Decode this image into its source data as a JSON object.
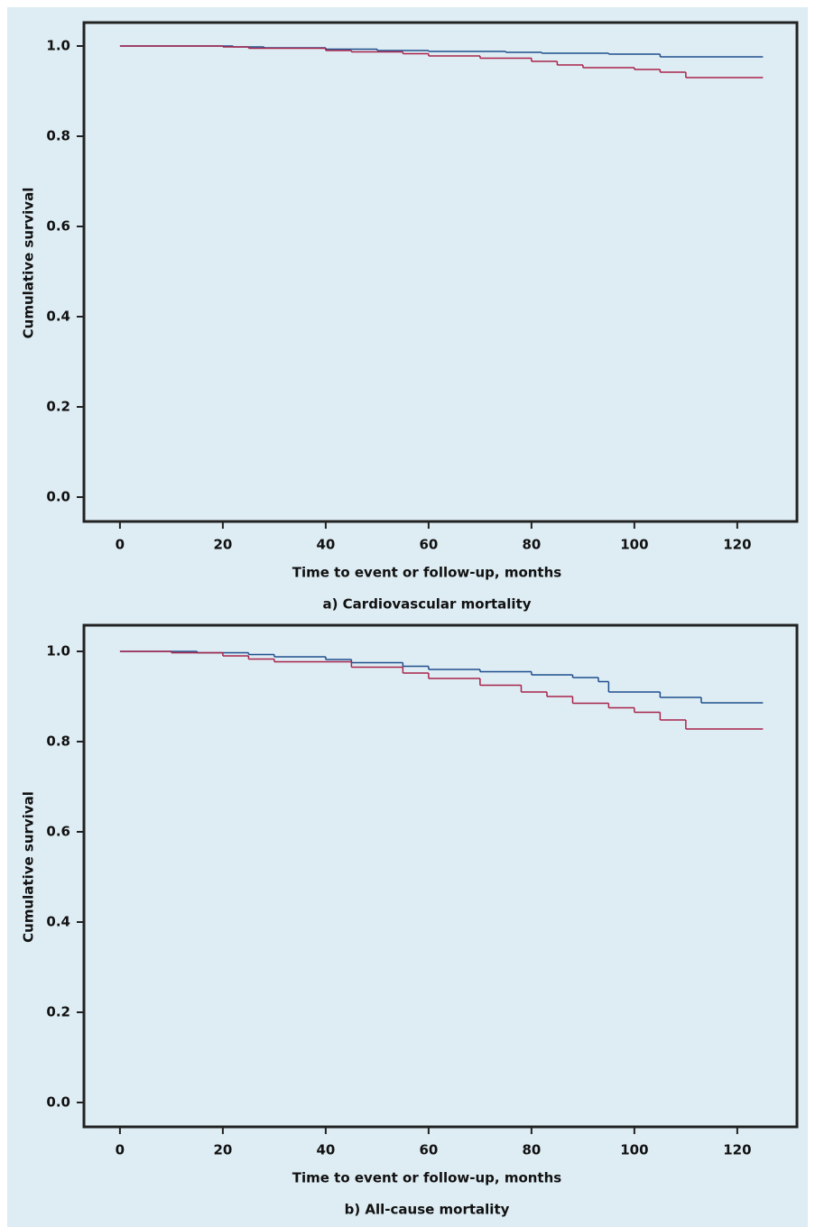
{
  "chart_data": [
    {
      "type": "line",
      "step": true,
      "title": "a) Cardiovascular mortality",
      "x_label": "Time to event or follow-up, months",
      "y_label": "Cumulative survival",
      "xlim": [
        -7,
        131.6
      ],
      "ylim": [
        -0.054,
        1.052
      ],
      "xticks": [
        0,
        20,
        40,
        60,
        80,
        100,
        120
      ],
      "yticks": [
        {
          "value": 0,
          "label": "0.0"
        },
        0.2,
        0.4,
        0.6,
        0.8,
        {
          "value": 1,
          "label": "1.0"
        }
      ],
      "series": [
        {
          "color": "#1f4e8c",
          "x": [
            0,
            22,
            28,
            40,
            50,
            60,
            75,
            82,
            95,
            105,
            125
          ],
          "values": [
            1,
            0.998,
            0.996,
            0.993,
            0.99,
            0.988,
            0.986,
            0.984,
            0.982,
            0.976,
            0.976
          ]
        },
        {
          "color": "#a8234a",
          "x": [
            0,
            20,
            25,
            40,
            45,
            55,
            60,
            70,
            80,
            85,
            90,
            100,
            105,
            110,
            125
          ],
          "values": [
            1,
            0.998,
            0.995,
            0.99,
            0.987,
            0.983,
            0.978,
            0.973,
            0.966,
            0.958,
            0.952,
            0.948,
            0.942,
            0.93,
            0.93
          ]
        }
      ]
    },
    {
      "type": "line",
      "step": true,
      "title": "b) All-cause mortality",
      "x_label": "Time to event or follow-up, months",
      "y_label": "Cumulative survival",
      "xlim": [
        -7,
        131.6
      ],
      "ylim": [
        -0.054,
        1.058
      ],
      "xticks": [
        0,
        20,
        40,
        60,
        80,
        100,
        120
      ],
      "yticks": [
        {
          "value": 0,
          "label": "0.0"
        },
        0.2,
        0.4,
        0.6,
        0.8,
        {
          "value": 1,
          "label": "1.0"
        }
      ],
      "series": [
        {
          "color": "#1f4e8c",
          "x": [
            0,
            15,
            25,
            30,
            40,
            45,
            55,
            60,
            70,
            80,
            88,
            93,
            95,
            105,
            113,
            125
          ],
          "values": [
            1,
            0.997,
            0.993,
            0.988,
            0.982,
            0.975,
            0.967,
            0.96,
            0.955,
            0.948,
            0.942,
            0.933,
            0.91,
            0.898,
            0.886,
            0.886
          ]
        },
        {
          "color": "#a8234a",
          "x": [
            0,
            10,
            20,
            25,
            30,
            45,
            55,
            60,
            70,
            78,
            83,
            88,
            95,
            100,
            105,
            110,
            125
          ],
          "values": [
            1,
            0.997,
            0.99,
            0.983,
            0.977,
            0.965,
            0.952,
            0.94,
            0.925,
            0.91,
            0.9,
            0.885,
            0.875,
            0.865,
            0.848,
            0.828,
            0.828
          ]
        }
      ]
    }
  ]
}
